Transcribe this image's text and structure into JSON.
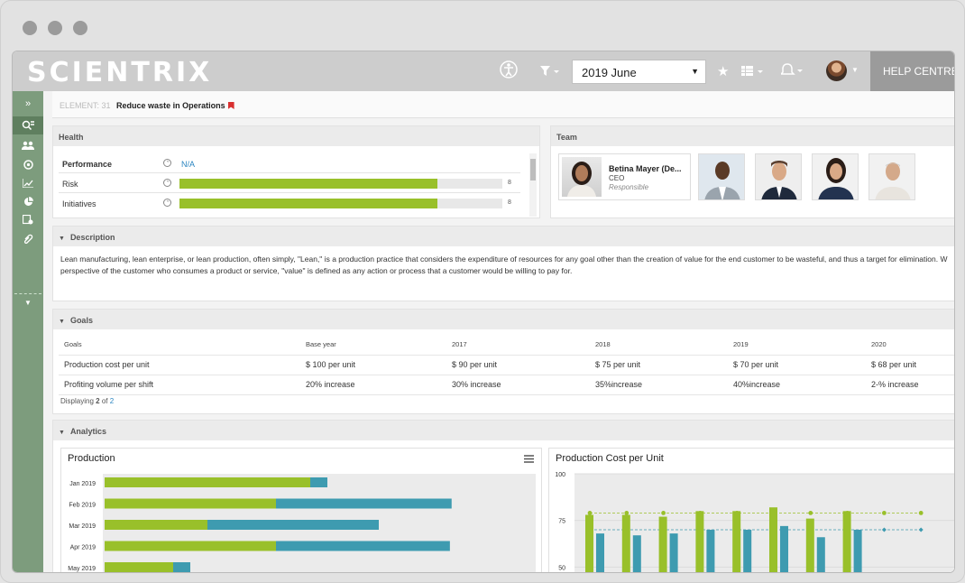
{
  "topbar": {
    "logo": "SCIENTRIX",
    "period_value": "2019 June",
    "help_label": "HELP CENTRE"
  },
  "breadcrumb": {
    "element_id": "ELEMENT: 31",
    "title": "Reduce waste in Operations"
  },
  "health": {
    "title": "Health",
    "rows": [
      {
        "label": "Performance",
        "value_text": "N/A"
      },
      {
        "label": "Risk",
        "score": "8",
        "fill_fraction": 0.8
      },
      {
        "label": "Initiatives",
        "score": "8",
        "fill_fraction": 0.8
      }
    ]
  },
  "team": {
    "title": "Team",
    "lead": {
      "name": "Betina Mayer (De...",
      "role": "CEO",
      "status": "Responsible"
    }
  },
  "description": {
    "title": "Description",
    "text": "Lean manufacturing, lean enterprise, or lean production, often simply, \"Lean,\" is a production practice that considers the expenditure of resources for any goal other than the creation of value for the end customer to be wasteful, and thus a target for elimination. W",
    "text2": "perspective of the customer who consumes a product or service, \"value\" is defined as any action or process that a customer would be willing to pay for."
  },
  "goals": {
    "title": "Goals",
    "headers": [
      "Goals",
      "Base year",
      "2017",
      "2018",
      "2019",
      "2020"
    ],
    "rows": [
      [
        "Production cost per unit",
        "$ 100 per unit",
        "$ 90 per unit",
        "$ 75 per unit",
        "$ 70 per unit",
        "$ 68 per unit"
      ],
      [
        "Profiting volume per shift",
        "20% increase",
        "30% increase",
        "35%increase",
        "40%increase",
        "2-% increase"
      ]
    ],
    "footer_prefix": "Displaying",
    "footer_count": "2",
    "footer_of": "of",
    "footer_total": "2"
  },
  "analytics": {
    "title": "Analytics"
  },
  "colors": {
    "green": "#99c02a",
    "teal": "#3e9bb0",
    "sidebar": "#7d9c7d"
  },
  "chart_data": [
    {
      "type": "bar",
      "orientation": "horizontal",
      "stacked": true,
      "title": "Production",
      "categories": [
        "Jan 2019",
        "Feb 2019",
        "Mar 2019",
        "Apr 2019",
        "May 2019"
      ],
      "series": [
        {
          "values": [
            240,
            200,
            120,
            200,
            80
          ]
        },
        {
          "values": [
            20,
            205,
            200,
            203,
            20
          ]
        }
      ]
    },
    {
      "type": "bar",
      "title": "Production Cost per Unit",
      "yticks": [
        "100",
        "75",
        "50"
      ],
      "ylim": [
        40,
        100
      ],
      "series": [
        {
          "values": [
            78,
            78,
            77,
            80,
            80,
            82,
            76,
            80
          ]
        },
        {
          "values": [
            68,
            67,
            68,
            70,
            70,
            72,
            66,
            70
          ]
        }
      ],
      "targets": [
        {
          "values": [
            79,
            79,
            79,
            79,
            79,
            79,
            79,
            79,
            79,
            79
          ]
        },
        {
          "values": [
            70,
            70,
            70,
            70,
            70,
            70,
            70,
            70,
            70,
            70
          ]
        }
      ]
    }
  ]
}
